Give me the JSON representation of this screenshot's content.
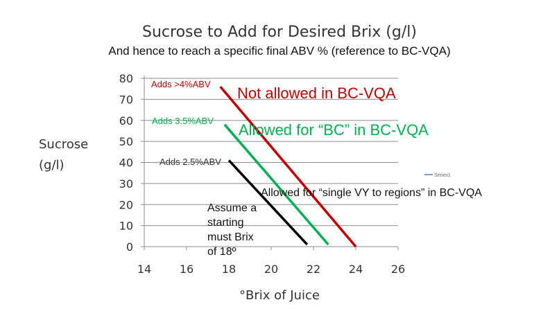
{
  "chart_data": {
    "type": "line",
    "title": "Sucrose to Add for Desired Brix (g/l)",
    "subtitle": "And hence to reach a specific final ABV % (reference to BC-VQA)",
    "ylabel_lines": [
      "Sucrose",
      "(g/l)"
    ],
    "xlabel": "°Brix of Juice",
    "xlim": [
      14,
      26
    ],
    "ylim": [
      0,
      80
    ],
    "xticks": [
      14,
      16,
      18,
      20,
      22,
      24,
      26
    ],
    "yticks": [
      0,
      10,
      20,
      30,
      40,
      50,
      60,
      70,
      80
    ],
    "grid": "horizontal",
    "legend": {
      "position": "right",
      "entries": [
        "Series1"
      ],
      "color": "#4f81bd"
    },
    "series": [
      {
        "color": "#c00000",
        "x": [
          17.6,
          24.0
        ],
        "y": [
          76,
          0
        ]
      },
      {
        "color": "#00b050",
        "x": [
          17.8,
          22.7
        ],
        "y": [
          58,
          1
        ]
      },
      {
        "color": "#000000",
        "x": [
          18.0,
          21.7
        ],
        "y": [
          41,
          1
        ]
      }
    ],
    "annotations": [
      {
        "text": "Adds >4%ABV",
        "color": "#c00000"
      },
      {
        "text": "Not allowed in BC-VQA",
        "color": "#c00000"
      },
      {
        "text": "Adds 3.5%ABV",
        "color": "#00b050"
      },
      {
        "text": "Allowed for “BC” in BC-VQA",
        "color": "#00b050"
      },
      {
        "text": "Adds 2.5%ABV",
        "color": "#333333"
      },
      {
        "text": "Allowed for “single VY to regions” in BC-VQA",
        "color": "#111111"
      },
      {
        "text_lines": [
          "Assume a",
          "starting",
          "must Brix",
          "of 18º"
        ],
        "color": "#111111"
      }
    ]
  }
}
